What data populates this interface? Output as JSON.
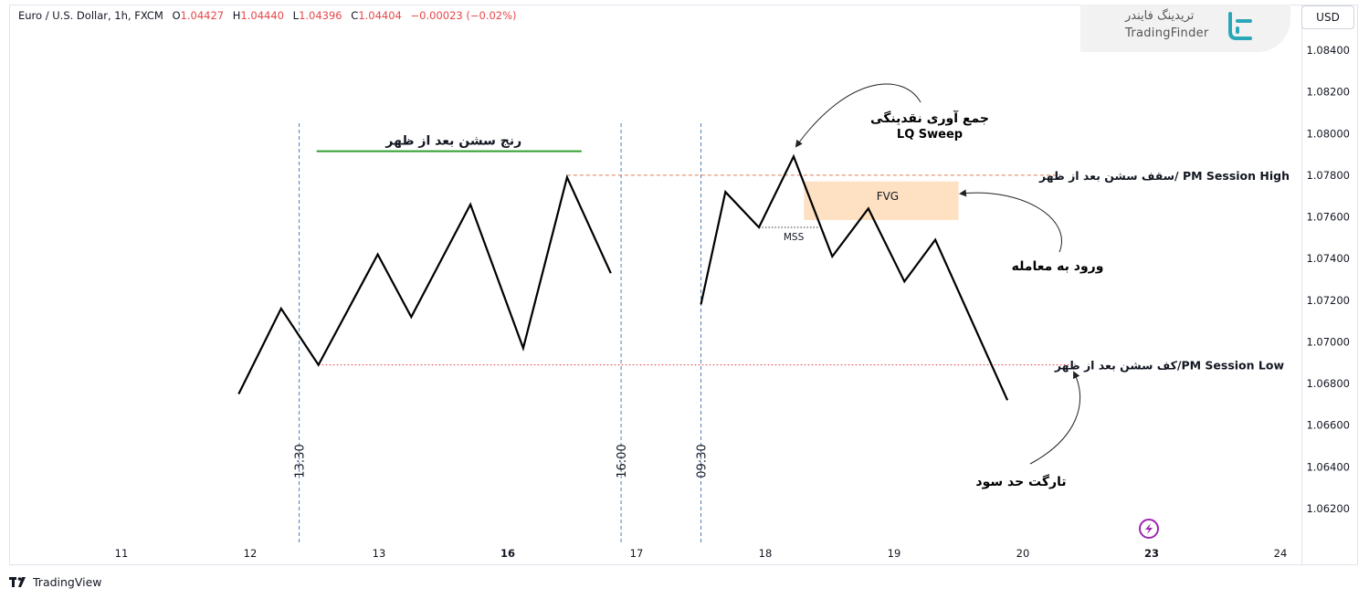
{
  "header": {
    "symbol": "Euro / U.S. Dollar, 1h, FXCM",
    "open_label": "O",
    "open": "1.04427",
    "high_label": "H",
    "high": "1.04440",
    "low_label": "L",
    "low": "1.04396",
    "close_label": "C",
    "close": "1.04404",
    "change": "−0.00023 (−0.02%)"
  },
  "currency_button": "USD",
  "logo": {
    "fa": "تریدینگ فایندر",
    "en": "TradingFinder"
  },
  "footer": {
    "brand": "TradingView"
  },
  "colors": {
    "line": "#000000",
    "session_line": "#4a7fc1",
    "range_bar": "#2e9e2e",
    "high_line": "#e07b4f",
    "low_line": "#e0484a",
    "fvg_fill": "#fde1c2",
    "mss": "#333333",
    "bolt": "#9c27b0"
  },
  "chart_data": {
    "type": "line",
    "y_axis": {
      "ylim": [
        1.0612,
        1.086
      ],
      "ticks": [
        "1.08400",
        "1.08200",
        "1.08000",
        "1.07800",
        "1.07600",
        "1.07400",
        "1.07200",
        "1.07000",
        "1.06800",
        "1.06600",
        "1.06400",
        "1.06200"
      ]
    },
    "x_axis": {
      "ticks": [
        {
          "label": "11",
          "pos": 0.0,
          "bold": false
        },
        {
          "label": "12",
          "pos": 1.0,
          "bold": false
        },
        {
          "label": "13",
          "pos": 2.0,
          "bold": false
        },
        {
          "label": "16",
          "pos": 3.0,
          "bold": true
        },
        {
          "label": "17",
          "pos": 4.0,
          "bold": false
        },
        {
          "label": "18",
          "pos": 5.0,
          "bold": false
        },
        {
          "label": "19",
          "pos": 6.0,
          "bold": false
        },
        {
          "label": "20",
          "pos": 7.0,
          "bold": false
        },
        {
          "label": "23",
          "pos": 8.0,
          "bold": true
        },
        {
          "label": "24",
          "pos": 9.0,
          "bold": false
        }
      ]
    },
    "series": [
      {
        "points": [
          [
            0.91,
            1.0675
          ],
          [
            1.24,
            1.0716
          ],
          [
            1.53,
            1.0689
          ],
          [
            1.99,
            1.0742
          ],
          [
            2.25,
            1.0712
          ],
          [
            2.71,
            1.0766
          ],
          [
            3.12,
            1.0697
          ],
          [
            3.46,
            1.0779
          ],
          [
            3.8,
            1.0733
          ]
        ]
      },
      {
        "points": [
          [
            4.5,
            1.0718
          ],
          [
            4.69,
            1.0772
          ],
          [
            4.95,
            1.0755
          ],
          [
            5.22,
            1.0789
          ],
          [
            5.52,
            1.0741
          ],
          [
            5.8,
            1.0764
          ],
          [
            6.08,
            1.0729
          ],
          [
            6.32,
            1.0749
          ],
          [
            6.88,
            1.0672
          ]
        ]
      }
    ],
    "vertical_lines": [
      {
        "x": 1.38,
        "label": "13:30"
      },
      {
        "x": 3.88,
        "label": "16:00"
      },
      {
        "x": 4.5,
        "label": "09:30"
      }
    ],
    "session_high": {
      "value": 1.078,
      "x_start": 3.46,
      "label": "سقف سشن بعد از ظهر/ PM Session High"
    },
    "session_low": {
      "value": 1.0689,
      "x_start": 1.53,
      "label": "کف سشن بعد از ظهر/PM Session Low"
    },
    "range": {
      "x_start": 1.53,
      "x_end": 3.63,
      "y": 1.07915,
      "label": "رنج سشن بعد از ظهر"
    },
    "fvg": {
      "x_start": 5.3,
      "x_end": 6.5,
      "y_top": 1.0777,
      "y_bottom": 1.07585,
      "label": "FVG"
    },
    "mss": {
      "x_start": 4.95,
      "x_end": 5.42,
      "y": 1.0755,
      "label": "MSS"
    },
    "annotations": {
      "liquidity": {
        "line1": "جمع آوری نقدینگی",
        "line2": "LQ Sweep"
      },
      "entry": "ورود به معامله",
      "target": "تارگت حد سود"
    }
  }
}
